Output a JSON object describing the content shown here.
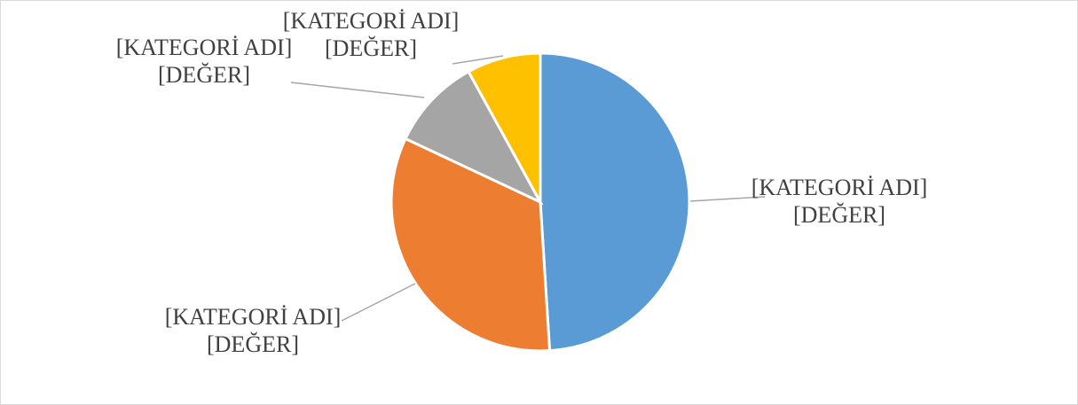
{
  "chart_data": {
    "type": "pie",
    "values": [
      49,
      33,
      10,
      8
    ],
    "value_labels": [
      "[KATEGORİ ADI] [DEĞER]",
      "[KATEGORİ ADI] [DEĞER]",
      "[KATEGORİ ADI] [DEĞER]",
      "[KATEGORİ ADI] [DEĞER]"
    ],
    "colors": [
      "#5b9bd5",
      "#ed7d31",
      "#a5a5a5",
      "#ffc000"
    ]
  }
}
